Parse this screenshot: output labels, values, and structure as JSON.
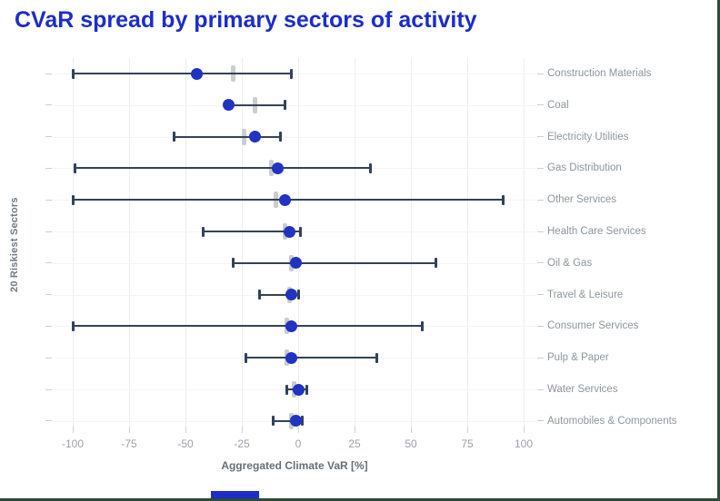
{
  "title": "CVaR spread by primary sectors of activity",
  "chart_data": {
    "type": "scatter",
    "subtype": "dot-with-range-whiskers",
    "title": "CVaR spread by primary sectors of activity",
    "xlabel": "Aggregated Climate VaR [%]",
    "ylabel": "20 Riskiest Sectors",
    "xlim": [
      -100,
      100
    ],
    "x_ticks": [
      -100,
      -75,
      -50,
      -25,
      0,
      25,
      50,
      75,
      100
    ],
    "grid": true,
    "legend": "none",
    "rows_order": "top-to-bottom",
    "rows": [
      {
        "label": "Construction Materials",
        "min": -100,
        "max": -3,
        "dot": -45,
        "marker": -29
      },
      {
        "label": "Coal",
        "min": -32,
        "max": -6,
        "dot": -31,
        "marker": -19
      },
      {
        "label": "Electricity Utilities",
        "min": -55,
        "max": -8,
        "dot": -19,
        "marker": -24
      },
      {
        "label": "Gas Distribution",
        "min": -99,
        "max": 32,
        "dot": -9,
        "marker": -12
      },
      {
        "label": "Other Services",
        "min": -100,
        "max": 91,
        "dot": -6,
        "marker": -10
      },
      {
        "label": "Health Care Services",
        "min": -42,
        "max": 1,
        "dot": -4,
        "marker": -6
      },
      {
        "label": "Oil & Gas",
        "min": -29,
        "max": 61,
        "dot": -1,
        "marker": -3
      },
      {
        "label": "Travel & Leisure",
        "min": -17,
        "max": 0,
        "dot": -3,
        "marker": -4
      },
      {
        "label": "Consumer Services",
        "min": -100,
        "max": 55,
        "dot": -3,
        "marker": -5
      },
      {
        "label": "Pulp & Paper",
        "min": -23,
        "max": 35,
        "dot": -3,
        "marker": -5
      },
      {
        "label": "Water Services",
        "min": -5,
        "max": 4,
        "dot": 0,
        "marker": -2
      },
      {
        "label": "Automobiles & Components",
        "min": -11,
        "max": 2,
        "dot": -1,
        "marker": -3
      }
    ]
  },
  "colors": {
    "title_blue": "#1c2dc9",
    "dot_blue": "#2133c0",
    "whisker_dark": "#32425a",
    "marker_gray": "#c9cdd0",
    "label_gray": "#8d969d",
    "tick_gray": "#9aa1a8",
    "frame_green": "#2e4b3a"
  }
}
